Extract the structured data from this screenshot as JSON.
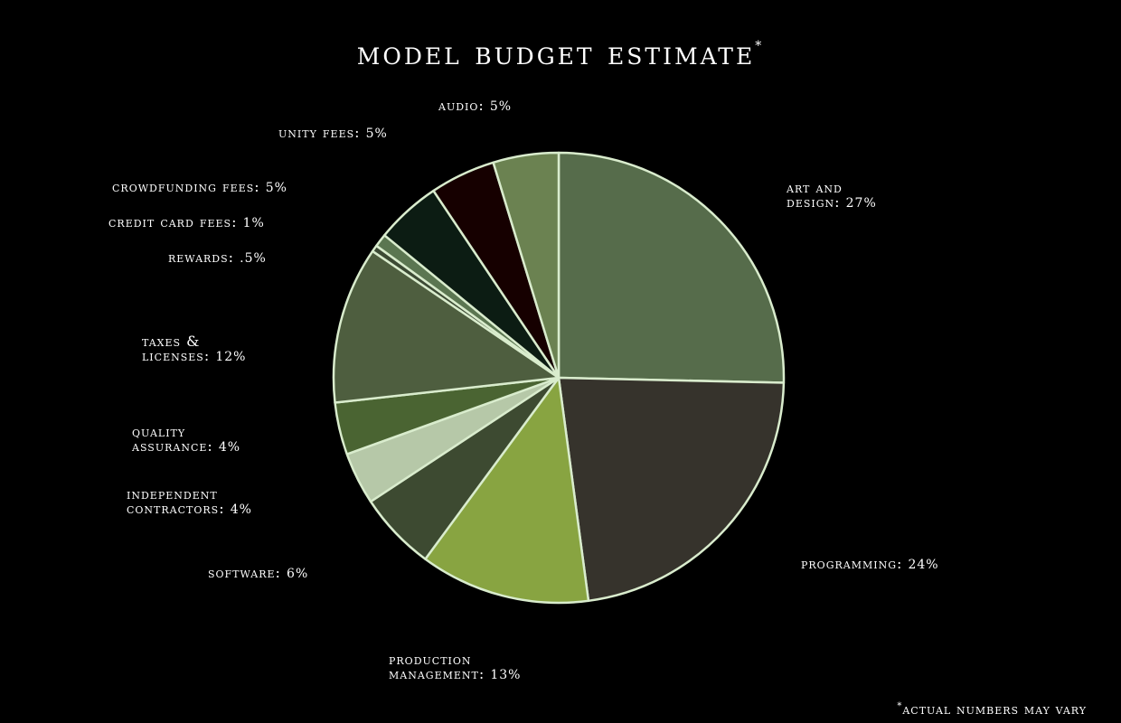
{
  "title": "Model Budget Estimate",
  "title_marker": "*",
  "footnote_marker": "*",
  "footnote": "Actual numbers may vary",
  "chart_data": {
    "type": "pie",
    "title": "Model Budget Estimate",
    "slices": [
      {
        "name": "Art and Design",
        "value": 27,
        "label": "27%",
        "color": "#566c4b"
      },
      {
        "name": "Programming",
        "value": 24,
        "label": "24%",
        "color": "#36332c"
      },
      {
        "name": "Production Management",
        "value": 13,
        "label": "13%",
        "color": "#88a441"
      },
      {
        "name": "Software",
        "value": 6,
        "label": "6%",
        "color": "#3d4a31"
      },
      {
        "name": "Independent Contractors",
        "value": 4,
        "label": "4%",
        "color": "#b6c8a8"
      },
      {
        "name": "Quality Assurance",
        "value": 4,
        "label": "4%",
        "color": "#4a6432"
      },
      {
        "name": "Taxes & Licenses",
        "value": 12,
        "label": "12%",
        "color": "#4e5e3f"
      },
      {
        "name": "Rewards",
        "value": 0.5,
        "label": ".5%",
        "color": "#3c4a34"
      },
      {
        "name": "Credit Card Fees",
        "value": 1,
        "label": "1%",
        "color": "#5b7651"
      },
      {
        "name": "Crowdfunding Fees",
        "value": 5,
        "label": "5%",
        "color": "#0c1c13"
      },
      {
        "name": "Unity Fees",
        "value": 5,
        "label": "5%",
        "color": "#160000"
      },
      {
        "name": "Audio",
        "value": 5,
        "label": "5%",
        "color": "#6b8251"
      }
    ]
  },
  "labels": [
    {
      "text": "Art and",
      "text2": "Design:",
      "pct": "27%"
    },
    {
      "text": "Programming:",
      "pct": "24%"
    },
    {
      "text": "Production",
      "text2": "Management:",
      "pct": "13%"
    },
    {
      "text": "Software:",
      "pct": "6%"
    },
    {
      "text": "Independent",
      "text2": "Contractors:",
      "pct": "4%"
    },
    {
      "text": "Quality",
      "text2": "Assurance:",
      "pct": "4%"
    },
    {
      "text": "Taxes &",
      "text2": "Licenses:",
      "pct": "12%"
    },
    {
      "text": "Rewards:",
      "pct": ".5%"
    },
    {
      "text": "Credit Card Fees:",
      "pct": "1%"
    },
    {
      "text": "Crowdfunding Fees:",
      "pct": "5%"
    },
    {
      "text": "Unity Fees:",
      "pct": "5%"
    },
    {
      "text": "Audio:",
      "pct": "5%"
    }
  ]
}
